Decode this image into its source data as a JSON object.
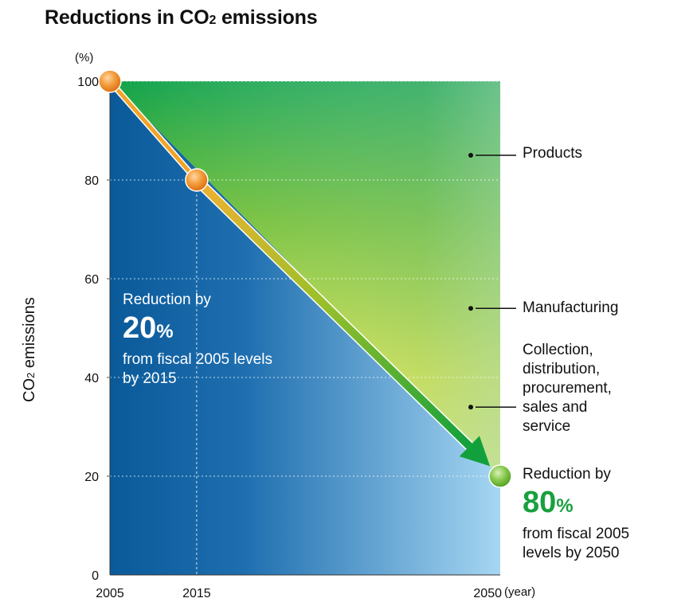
{
  "title": {
    "main": "Reductions in CO",
    "sub": "2",
    "rest": " emissions"
  },
  "chart_data": {
    "type": "area",
    "title": "Reductions in CO2 emissions",
    "ylabel": "CO2 emissions",
    "y_unit": "(%)",
    "x_unit": "(year)",
    "ylim": [
      0,
      100
    ],
    "xlim": [
      2005,
      2050
    ],
    "y_ticks": [
      0,
      20,
      40,
      60,
      80,
      100
    ],
    "x_ticks": [
      2005,
      2015,
      2050
    ],
    "grid": true,
    "series": [
      {
        "x": [
          2005,
          2015,
          2050
        ],
        "values": [
          100,
          80,
          20
        ]
      }
    ],
    "points": [
      {
        "x": 2005,
        "y": 100,
        "color": "#f08a24"
      },
      {
        "x": 2015,
        "y": 80,
        "color": "#f08a24"
      },
      {
        "x": 2050,
        "y": 20,
        "color": "#6ab83e"
      }
    ],
    "areas": [
      {
        "label": "Products",
        "y": 85
      },
      {
        "label": "Manufacturing",
        "y": 54
      },
      {
        "label": "Collection, distribution, procurement, sales and service",
        "y": 34
      }
    ],
    "annotations": [
      {
        "line1": "Reduction by",
        "big": "20",
        "pct": "%",
        "line2": "from fiscal 2005 levels",
        "line3": "by 2015"
      },
      {
        "line1": "Reduction by",
        "big": "80",
        "pct": "%",
        "line2": "from fiscal 2005",
        "line3": "levels by 2050"
      }
    ],
    "colors": {
      "blue_dark": "#0a5a9a",
      "blue_light": "#a6d6f2",
      "green": "#0fa04a",
      "yellow": "#e8ea40",
      "orange": "#f08a24"
    }
  },
  "labels": {
    "ylabel_main": "CO",
    "ylabel_sub": "2",
    "ylabel_rest": " emissions",
    "products": "Products",
    "manufacturing": "Manufacturing",
    "collection_lines": [
      "Collection,",
      "distribution,",
      "procurement,",
      "sales and",
      "service"
    ]
  }
}
